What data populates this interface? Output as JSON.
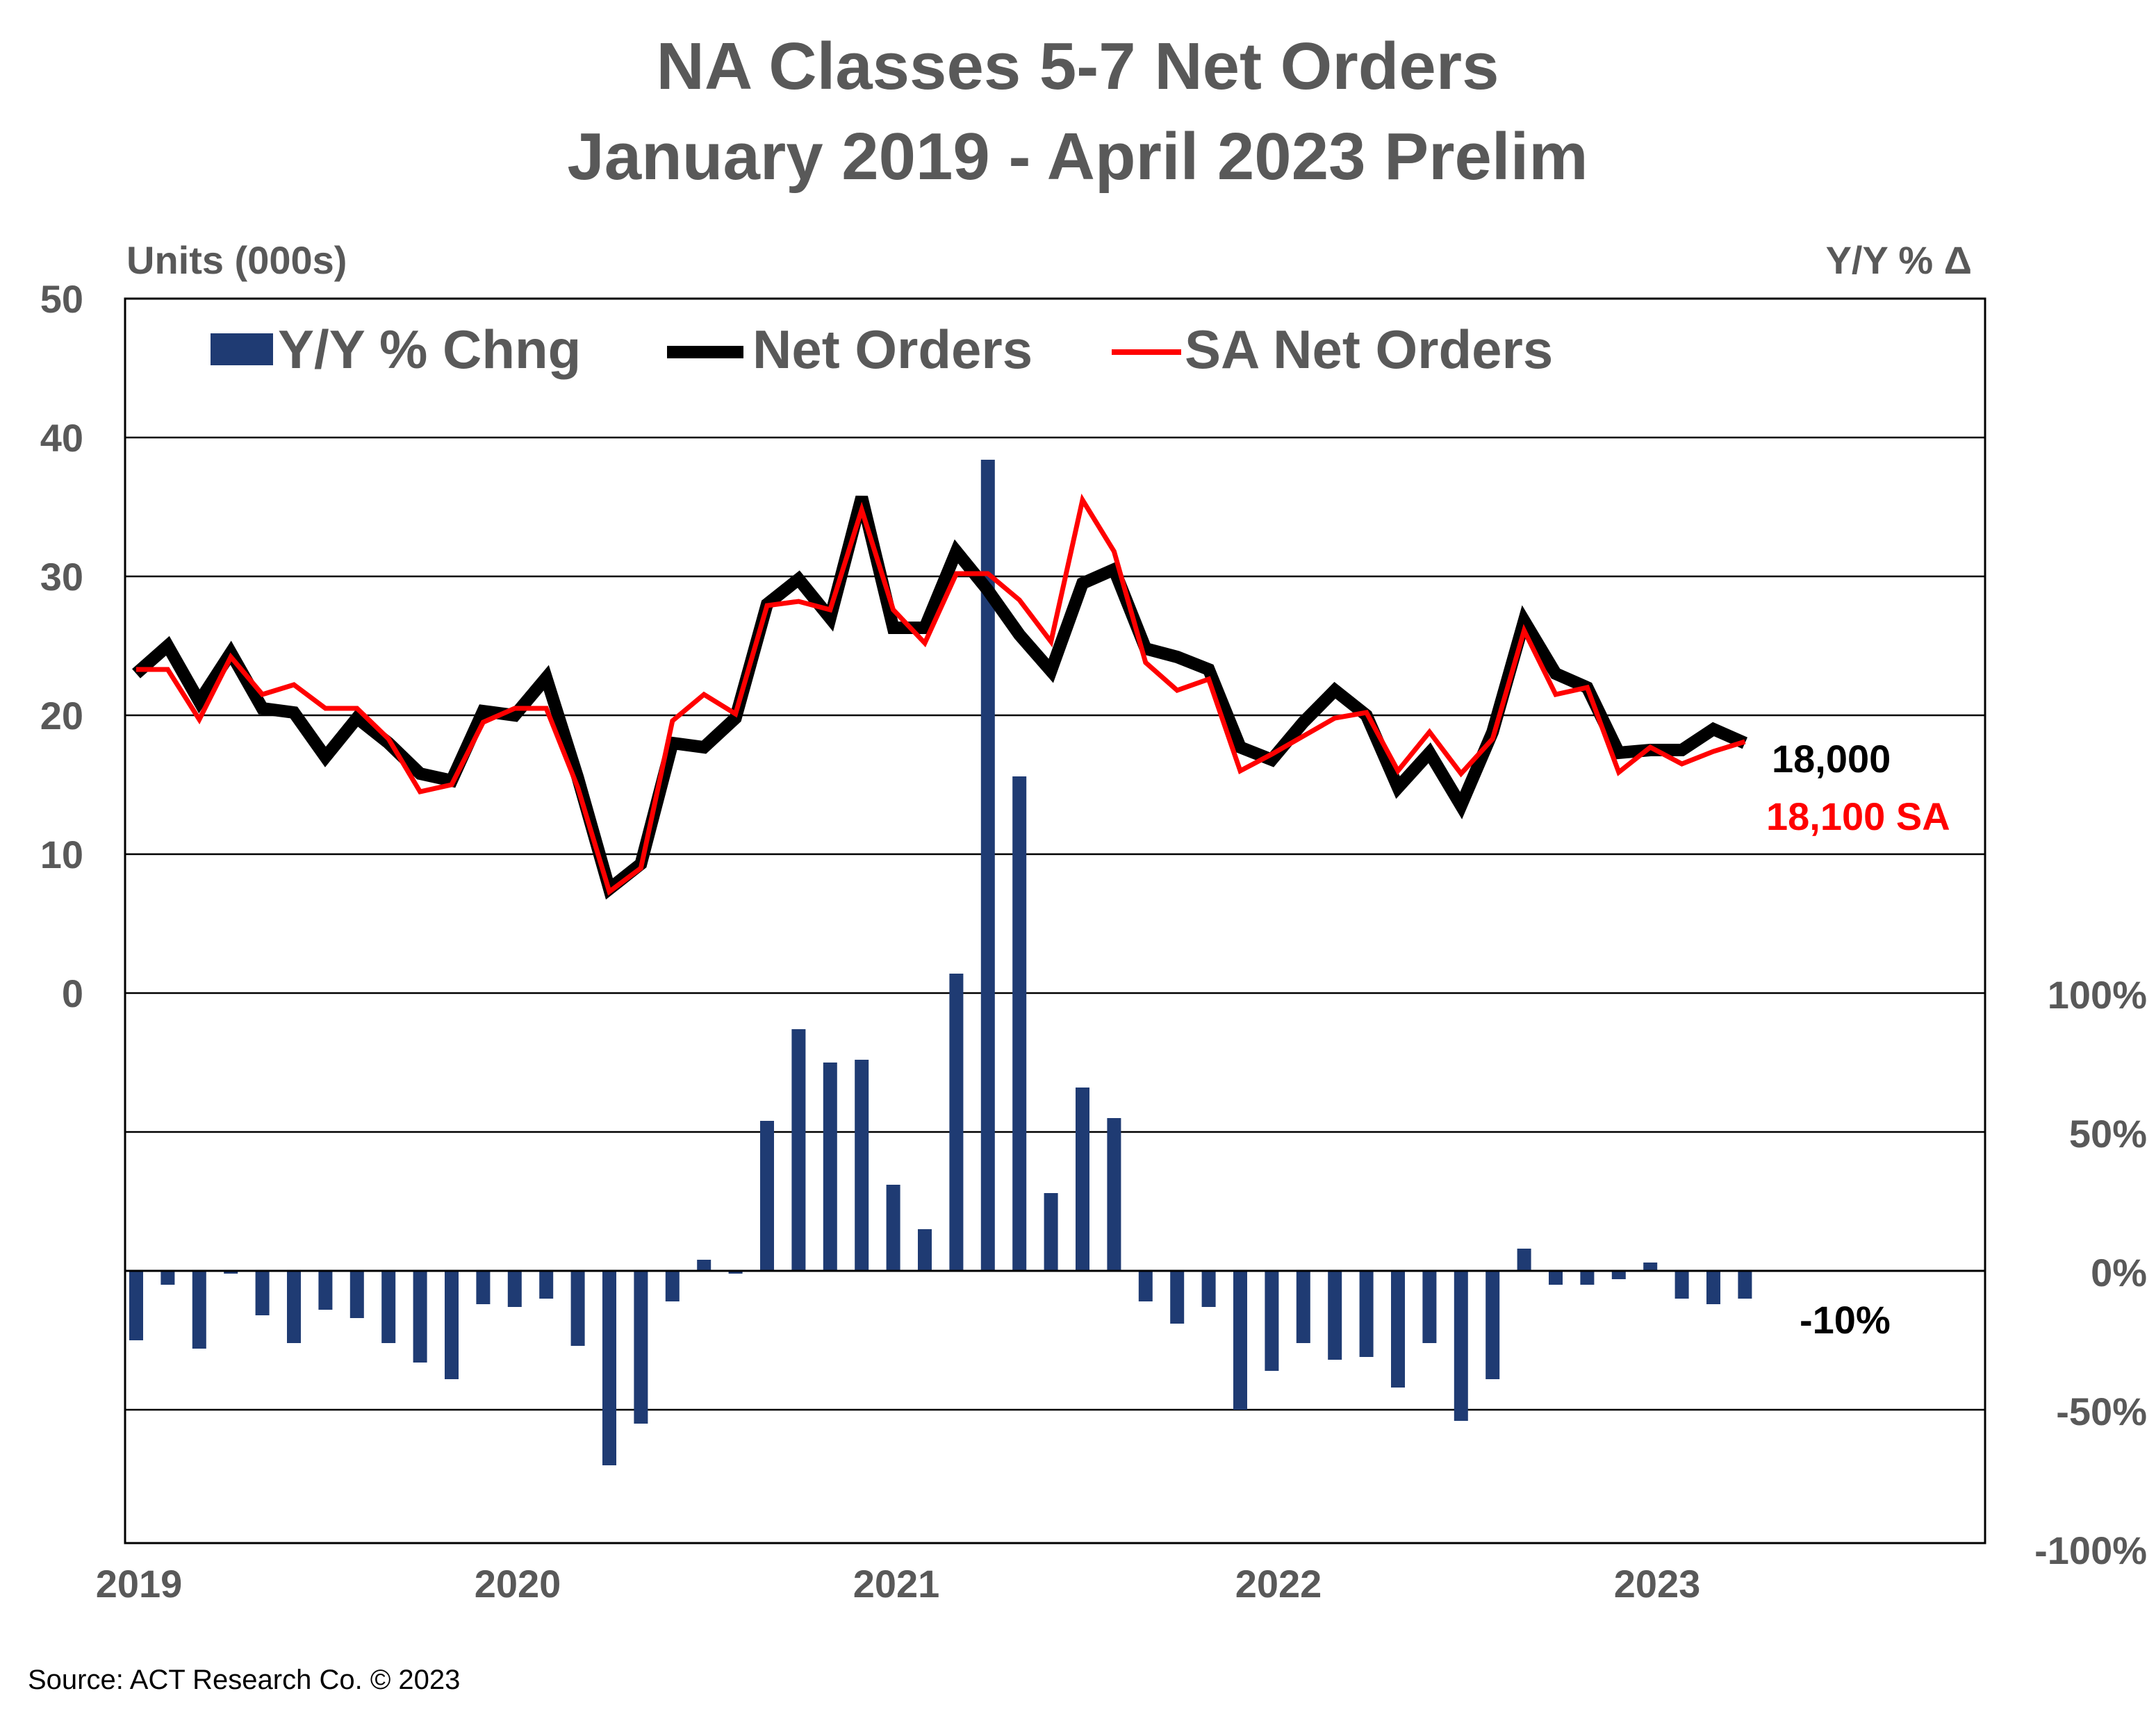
{
  "chart_data": {
    "type": "bar+line",
    "title": [
      "NA Classes 5-7 Net Orders",
      "January 2019 - April 2023 Prelim"
    ],
    "ylabel_left": "Units (000s)",
    "ylabel_right": "Y/Y % Δ",
    "y_left_ticks": [
      "50",
      "40",
      "30",
      "20",
      "10",
      "0"
    ],
    "y_left_range": [
      0,
      50
    ],
    "y_right_ticks": [
      "100%",
      "50%",
      "0%",
      "-50%",
      "-100%"
    ],
    "y_right_range": [
      -100,
      100
    ],
    "x_ticks": [
      "2019",
      "2020",
      "2021",
      "2022",
      "2023"
    ],
    "grid": true,
    "legend": {
      "placement": "top",
      "entries": [
        {
          "name": "Y/Y % Chng",
          "color": "#1f3b73",
          "kind": "bar"
        },
        {
          "name": "Net Orders",
          "color": "#000000",
          "kind": "line-thick"
        },
        {
          "name": "SA Net Orders",
          "color": "#ff0000",
          "kind": "line-thin"
        }
      ]
    },
    "months": [
      "Jan 2019",
      "Feb 2019",
      "Mar 2019",
      "Apr 2019",
      "May 2019",
      "Jun 2019",
      "Jul 2019",
      "Aug 2019",
      "Sep 2019",
      "Oct 2019",
      "Nov 2019",
      "Dec 2019",
      "Jan 2020",
      "Feb 2020",
      "Mar 2020",
      "Apr 2020",
      "May 2020",
      "Jun 2020",
      "Jul 2020",
      "Aug 2020",
      "Sep 2020",
      "Oct 2020",
      "Nov 2020",
      "Dec 2020",
      "Jan 2021",
      "Feb 2021",
      "Mar 2021",
      "Apr 2021",
      "May 2021",
      "Jun 2021",
      "Jul 2021",
      "Aug 2021",
      "Sep 2021",
      "Oct 2021",
      "Nov 2021",
      "Dec 2021",
      "Jan 2022",
      "Feb 2022",
      "Mar 2022",
      "Apr 2022",
      "May 2022",
      "Jun 2022",
      "Jul 2022",
      "Aug 2022",
      "Sep 2022",
      "Oct 2022",
      "Nov 2022",
      "Dec 2022",
      "Jan 2023",
      "Feb 2023",
      "Mar 2023",
      "Apr 2023"
    ],
    "series": [
      {
        "name": "Net Orders",
        "axis": "left",
        "values": [
          23,
          25,
          21,
          24.5,
          20.5,
          20.2,
          17,
          19.8,
          18,
          15.8,
          15.3,
          20.3,
          20,
          22.7,
          15.5,
          7.5,
          9.3,
          18,
          17.7,
          19.8,
          28,
          29.8,
          27,
          35.7,
          26.3,
          26.3,
          31.8,
          29,
          25.8,
          23.2,
          29.5,
          30.5,
          24.8,
          24.2,
          23.3,
          17.7,
          16.8,
          19.5,
          21.8,
          20,
          14.8,
          17.3,
          13.5,
          18.8,
          26.8,
          23,
          22,
          17.3,
          17.5,
          17.5,
          19,
          18
        ]
      },
      {
        "name": "SA Net Orders",
        "axis": "left",
        "values": [
          23.3,
          23.3,
          19.7,
          24.2,
          21.5,
          22.2,
          20.5,
          20.5,
          18.3,
          14.5,
          15,
          19.5,
          20.5,
          20.5,
          14.8,
          7.3,
          9,
          19.6,
          21.5,
          20.1,
          27.9,
          28.2,
          27.6,
          34.8,
          27.6,
          25.2,
          30.2,
          30.2,
          28.3,
          25.3,
          35.5,
          31.8,
          23.8,
          21.8,
          22.6,
          16,
          17.2,
          18.5,
          19.8,
          20.2,
          16,
          18.8,
          15.8,
          18.3,
          26.1,
          21.5,
          22,
          15.9,
          17.7,
          16.5,
          17.4,
          18.1
        ]
      },
      {
        "name": "Y/Y % Chng",
        "axis": "right",
        "values": [
          -25,
          -5,
          -28,
          -1,
          -16,
          -26,
          -14,
          -17,
          -26,
          -33,
          -39,
          -12,
          -13,
          -10,
          -27,
          -70,
          -55,
          -11,
          4,
          -1,
          54,
          87,
          75,
          76,
          31,
          15,
          107,
          292,
          178,
          28,
          66,
          55,
          -11,
          -19,
          -13,
          -50,
          -36,
          -26,
          -32,
          -31,
          -42,
          -26,
          -54,
          -39,
          8,
          -5,
          -5,
          -3,
          3,
          -10,
          -12,
          -10
        ]
      }
    ],
    "annotations": [
      {
        "text": "18,000",
        "color": "#000000"
      },
      {
        "text": "18,100 SA",
        "color": "#ff0000"
      },
      {
        "text": "-10%",
        "color": "#000000"
      }
    ]
  },
  "source": "Source: ACT Research Co. © 2023"
}
